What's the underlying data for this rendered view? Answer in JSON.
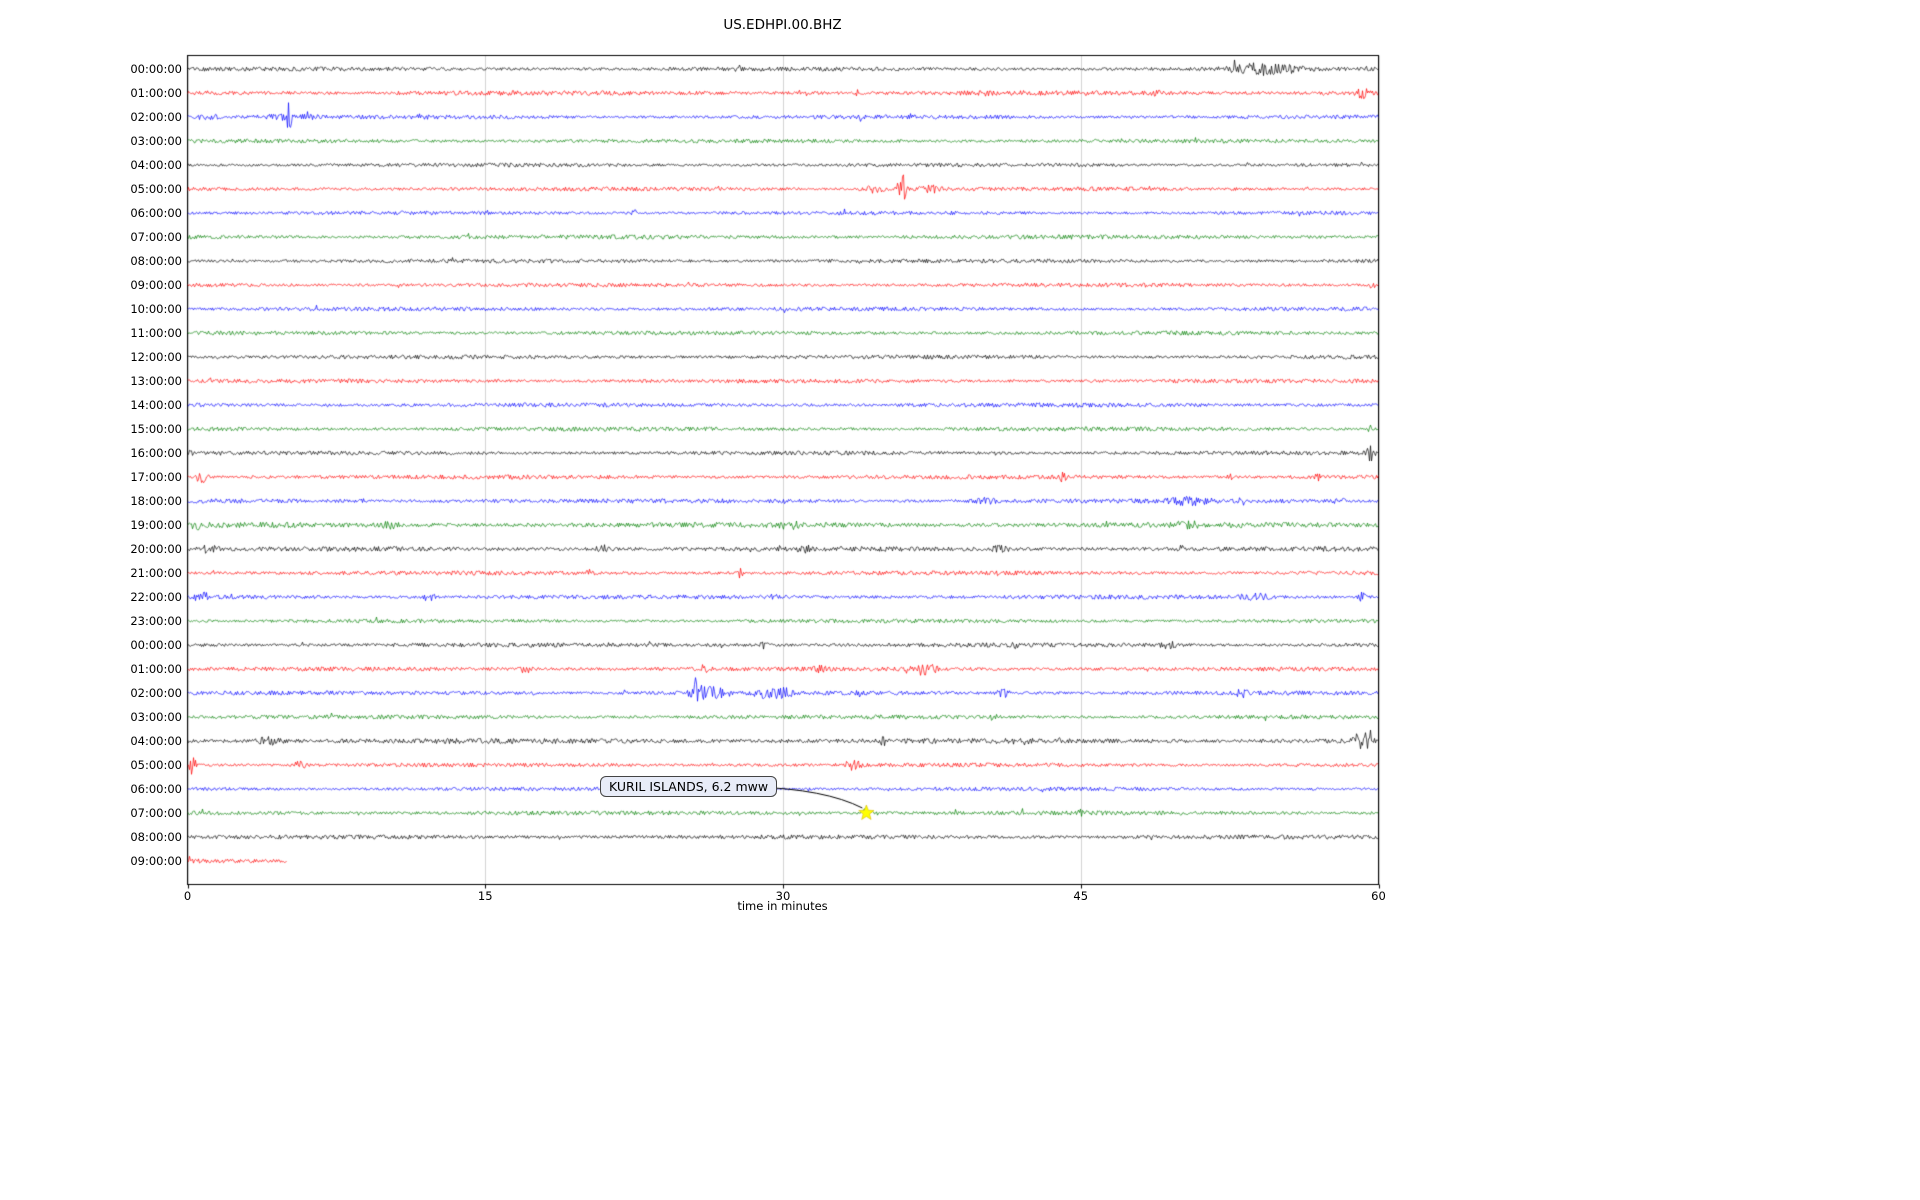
{
  "chart_data": {
    "type": "line",
    "subtype": "seismogram-dayplot",
    "title": "US.EDHPI.00.BHZ",
    "xlabel": "time in minutes",
    "x_ticks": [
      0,
      15,
      30,
      45,
      60
    ],
    "x_range": [
      0,
      60
    ],
    "minutes_per_row": 60,
    "grid": true,
    "grid_color": "#c8c8c8",
    "trace_color_cycle": [
      "#000000",
      "#ff0000",
      "#0000ff",
      "#008000"
    ],
    "annotation": {
      "label": "KURIL ISLANDS, 6.2 mww",
      "row_index": 31,
      "minute": 34.2,
      "marker": "star",
      "marker_color": "#ffff00"
    },
    "rows": [
      {
        "label": "00:00:00",
        "color": "#000000",
        "base_amp": 1.7,
        "events": [
          {
            "start": 51.5,
            "end": 57.0,
            "amp": 5.0
          },
          {
            "start": 27.5,
            "end": 28.2,
            "amp": 2.5
          }
        ]
      },
      {
        "label": "01:00:00",
        "color": "#ff0000",
        "base_amp": 2.0,
        "events": [
          {
            "start": 58.6,
            "end": 59.8,
            "amp": 4.0
          },
          {
            "start": 40.0,
            "end": 40.5,
            "amp": 2.5
          },
          {
            "start": 48.3,
            "end": 49.2,
            "amp": 2.5
          },
          {
            "start": 33.5,
            "end": 34.0,
            "amp": 2.0
          }
        ]
      },
      {
        "label": "02:00:00",
        "color": "#0000ff",
        "base_amp": 1.7,
        "events": [
          {
            "start": 4.9,
            "end": 5.3,
            "amp": 13.0
          },
          {
            "start": 0.0,
            "end": 2.0,
            "amp": 2.5
          },
          {
            "start": 2.5,
            "end": 7.5,
            "amp": 2.0
          },
          {
            "start": 11.5,
            "end": 12.2,
            "amp": 2.5
          }
        ]
      },
      {
        "label": "03:00:00",
        "color": "#008000",
        "base_amp": 1.7,
        "events": []
      },
      {
        "label": "04:00:00",
        "color": "#000000",
        "base_amp": 1.6,
        "events": [
          {
            "start": 29.0,
            "end": 29.4,
            "amp": 1.5
          }
        ]
      },
      {
        "label": "05:00:00",
        "color": "#ff0000",
        "base_amp": 1.7,
        "events": [
          {
            "start": 35.6,
            "end": 36.4,
            "amp": 14.0
          },
          {
            "start": 33.5,
            "end": 35.5,
            "amp": 3.0
          },
          {
            "start": 36.4,
            "end": 38.5,
            "amp": 3.0
          }
        ]
      },
      {
        "label": "06:00:00",
        "color": "#0000ff",
        "base_amp": 1.6,
        "events": [
          {
            "start": 22.2,
            "end": 22.8,
            "amp": 2.5
          }
        ]
      },
      {
        "label": "07:00:00",
        "color": "#008000",
        "base_amp": 1.8,
        "events": []
      },
      {
        "label": "08:00:00",
        "color": "#000000",
        "base_amp": 1.7,
        "events": []
      },
      {
        "label": "09:00:00",
        "color": "#ff0000",
        "base_amp": 1.7,
        "events": [
          {
            "start": 59.5,
            "end": 60.0,
            "amp": 2.5
          }
        ]
      },
      {
        "label": "10:00:00",
        "color": "#0000ff",
        "base_amp": 1.7,
        "events": []
      },
      {
        "label": "11:00:00",
        "color": "#008000",
        "base_amp": 1.7,
        "events": []
      },
      {
        "label": "12:00:00",
        "color": "#000000",
        "base_amp": 1.7,
        "events": []
      },
      {
        "label": "13:00:00",
        "color": "#ff0000",
        "base_amp": 1.7,
        "events": []
      },
      {
        "label": "14:00:00",
        "color": "#0000ff",
        "base_amp": 1.8,
        "events": []
      },
      {
        "label": "15:00:00",
        "color": "#008000",
        "base_amp": 1.8,
        "events": [
          {
            "start": 59.3,
            "end": 60.0,
            "amp": 3.0
          }
        ]
      },
      {
        "label": "16:00:00",
        "color": "#000000",
        "base_amp": 1.7,
        "events": [
          {
            "start": 59.2,
            "end": 60.0,
            "amp": 8.0
          },
          {
            "start": 0.0,
            "end": 0.3,
            "amp": 4.0
          }
        ]
      },
      {
        "label": "17:00:00",
        "color": "#ff0000",
        "base_amp": 1.8,
        "events": [
          {
            "start": 0.2,
            "end": 1.2,
            "amp": 5.0
          },
          {
            "start": 43.8,
            "end": 44.4,
            "amp": 3.5
          },
          {
            "start": 56.7,
            "end": 57.2,
            "amp": 2.5
          },
          {
            "start": 52.3,
            "end": 52.8,
            "amp": 2.5
          }
        ]
      },
      {
        "label": "18:00:00",
        "color": "#0000ff",
        "base_amp": 1.9,
        "events": [
          {
            "start": 39.3,
            "end": 41.0,
            "amp": 3.0
          },
          {
            "start": 48.7,
            "end": 52.3,
            "amp": 2.6
          },
          {
            "start": 57.5,
            "end": 58.5,
            "amp": 2.5
          }
        ]
      },
      {
        "label": "19:00:00",
        "color": "#008000",
        "base_amp": 2.2,
        "events": [
          {
            "start": 9.5,
            "end": 11.0,
            "amp": 2.5
          },
          {
            "start": 29.5,
            "end": 31.2,
            "amp": 2.8
          },
          {
            "start": 49.5,
            "end": 51.2,
            "amp": 2.8
          },
          {
            "start": 0.0,
            "end": 1.0,
            "amp": 2.5
          }
        ]
      },
      {
        "label": "20:00:00",
        "color": "#000000",
        "base_amp": 2.0,
        "events": [
          {
            "start": 20.3,
            "end": 21.6,
            "amp": 3.0
          },
          {
            "start": 30.4,
            "end": 31.6,
            "amp": 3.0
          },
          {
            "start": 40.3,
            "end": 41.6,
            "amp": 3.0
          },
          {
            "start": 49.8,
            "end": 50.4,
            "amp": 4.0
          },
          {
            "start": 0.3,
            "end": 1.8,
            "amp": 3.0
          }
        ]
      },
      {
        "label": "21:00:00",
        "color": "#ff0000",
        "base_amp": 1.8,
        "events": [
          {
            "start": 27.6,
            "end": 28.1,
            "amp": 4.0
          },
          {
            "start": 20.0,
            "end": 20.6,
            "amp": 2.5
          }
        ]
      },
      {
        "label": "22:00:00",
        "color": "#0000ff",
        "base_amp": 1.8,
        "events": [
          {
            "start": 0.0,
            "end": 1.6,
            "amp": 3.0
          },
          {
            "start": 11.8,
            "end": 12.6,
            "amp": 6.0
          },
          {
            "start": 52.4,
            "end": 55.0,
            "amp": 3.0
          },
          {
            "start": 58.8,
            "end": 59.6,
            "amp": 4.0
          },
          {
            "start": 29.3,
            "end": 29.8,
            "amp": 2.5
          }
        ]
      },
      {
        "label": "23:00:00",
        "color": "#008000",
        "base_amp": 1.6,
        "events": []
      },
      {
        "label": "00:00:00",
        "color": "#000000",
        "base_amp": 1.8,
        "events": [
          {
            "start": 28.7,
            "end": 29.4,
            "amp": 3.0
          },
          {
            "start": 48.7,
            "end": 50.2,
            "amp": 3.2
          },
          {
            "start": 41.5,
            "end": 42.0,
            "amp": 2.5
          }
        ]
      },
      {
        "label": "01:00:00",
        "color": "#ff0000",
        "base_amp": 1.8,
        "events": [
          {
            "start": 16.4,
            "end": 17.6,
            "amp": 3.0
          },
          {
            "start": 25.4,
            "end": 26.6,
            "amp": 3.0
          },
          {
            "start": 31.4,
            "end": 32.3,
            "amp": 3.0
          },
          {
            "start": 36.0,
            "end": 38.2,
            "amp": 5.0
          },
          {
            "start": 13.5,
            "end": 14.0,
            "amp": 2.5
          }
        ]
      },
      {
        "label": "02:00:00",
        "color": "#0000ff",
        "base_amp": 1.8,
        "events": [
          {
            "start": 25.2,
            "end": 26.1,
            "amp": 11.0
          },
          {
            "start": 24.5,
            "end": 28.0,
            "amp": 5.0
          },
          {
            "start": 28.0,
            "end": 31.2,
            "amp": 5.0
          },
          {
            "start": 40.6,
            "end": 41.6,
            "amp": 4.0
          },
          {
            "start": 52.7,
            "end": 53.7,
            "amp": 5.0
          },
          {
            "start": 33.5,
            "end": 34.0,
            "amp": 3.0
          }
        ]
      },
      {
        "label": "03:00:00",
        "color": "#008000",
        "base_amp": 1.7,
        "events": [
          {
            "start": 40.3,
            "end": 40.9,
            "amp": 2.5
          }
        ]
      },
      {
        "label": "04:00:00",
        "color": "#000000",
        "base_amp": 2.2,
        "events": [
          {
            "start": 3.0,
            "end": 5.2,
            "amp": 3.0
          },
          {
            "start": 41.3,
            "end": 42.6,
            "amp": 3.0
          },
          {
            "start": 58.4,
            "end": 59.9,
            "amp": 8.0
          },
          {
            "start": 34.8,
            "end": 35.3,
            "amp": 3.0
          }
        ]
      },
      {
        "label": "05:00:00",
        "color": "#ff0000",
        "base_amp": 1.7,
        "events": [
          {
            "start": 0.0,
            "end": 0.5,
            "amp": 11.0
          },
          {
            "start": 5.2,
            "end": 6.2,
            "amp": 3.5
          },
          {
            "start": 32.8,
            "end": 34.2,
            "amp": 4.5
          }
        ]
      },
      {
        "label": "06:00:00",
        "color": "#0000ff",
        "base_amp": 1.6,
        "events": []
      },
      {
        "label": "07:00:00",
        "color": "#008000",
        "base_amp": 1.8,
        "events": [
          {
            "start": 33.8,
            "end": 34.6,
            "amp": 3.5
          },
          {
            "start": 44.7,
            "end": 45.4,
            "amp": 2.5
          }
        ]
      },
      {
        "label": "08:00:00",
        "color": "#000000",
        "base_amp": 1.8,
        "events": []
      },
      {
        "label": "09:00:00",
        "color": "#ff0000",
        "base_amp": 2.2,
        "end_min": 5.0,
        "events": []
      }
    ]
  }
}
